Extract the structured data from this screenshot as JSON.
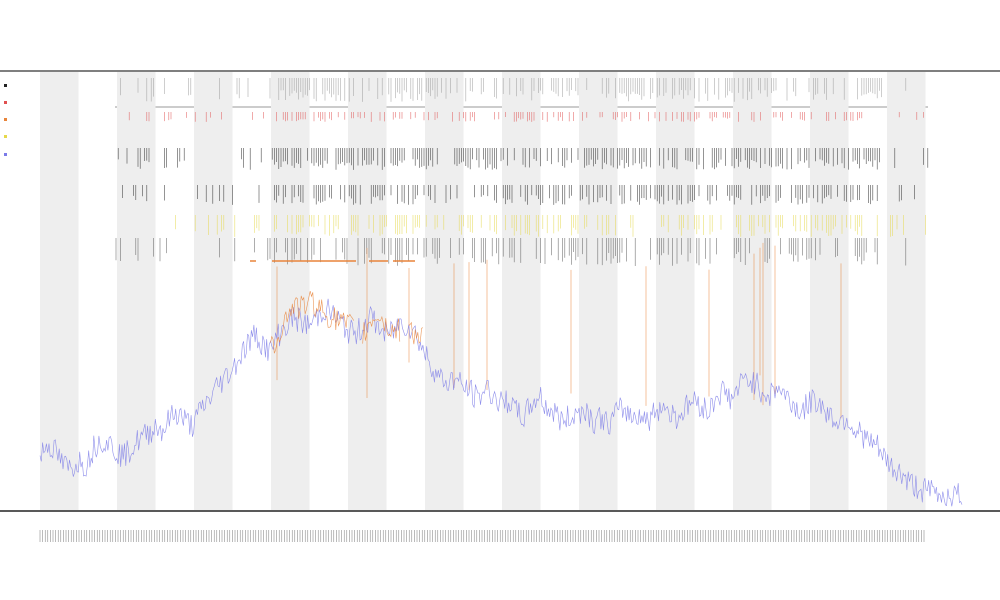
{
  "chart_data": {
    "type": "line",
    "title": "",
    "subtitle_1": "",
    "subtitle_2": "",
    "xlabel": "",
    "ylabel": "",
    "grid": false,
    "legend_position": "top-left",
    "x": [
      0,
      1,
      2,
      3,
      4,
      5,
      6,
      7,
      8,
      9,
      10,
      11,
      12,
      13,
      14,
      15,
      16,
      17,
      18,
      19,
      20,
      21,
      22,
      23,
      24,
      25,
      26,
      27,
      28,
      29,
      30,
      31,
      32,
      33,
      34,
      35,
      36,
      37,
      38,
      39,
      40,
      41,
      42,
      43,
      44,
      45,
      46,
      47,
      48,
      49,
      50,
      51,
      52,
      53,
      54,
      55,
      56,
      57,
      58,
      59,
      60,
      61,
      62,
      63,
      64,
      65,
      66,
      67,
      68,
      69,
      70,
      71,
      72,
      73,
      74,
      75,
      76,
      77,
      78,
      79,
      80,
      81,
      82,
      83,
      84,
      85,
      86,
      87,
      88,
      89,
      90,
      91,
      92,
      93,
      94,
      95,
      96,
      97,
      98,
      99,
      100,
      101,
      102,
      103,
      104,
      105,
      106,
      107,
      108,
      109,
      110,
      111,
      112,
      113,
      114,
      115,
      116,
      117,
      118,
      119,
      120
    ],
    "series": [
      {
        "name": "",
        "color": "#7b7be8",
        "values": [
          0.12,
          0.15,
          0.13,
          0.1,
          0.09,
          0.11,
          0.1,
          0.14,
          0.16,
          0.15,
          0.13,
          0.12,
          0.14,
          0.16,
          0.17,
          0.19,
          0.18,
          0.21,
          0.22,
          0.2,
          0.19,
          0.23,
          0.25,
          0.28,
          0.3,
          0.32,
          0.35,
          0.38,
          0.4,
          0.38,
          0.36,
          0.4,
          0.42,
          0.44,
          0.43,
          0.42,
          0.44,
          0.46,
          0.45,
          0.43,
          0.41,
          0.4,
          0.42,
          0.44,
          0.42,
          0.4,
          0.41,
          0.43,
          0.42,
          0.4,
          0.36,
          0.33,
          0.3,
          0.29,
          0.3,
          0.28,
          0.27,
          0.25,
          0.28,
          0.26,
          0.24,
          0.25,
          0.22,
          0.21,
          0.24,
          0.26,
          0.23,
          0.22,
          0.2,
          0.21,
          0.22,
          0.23,
          0.2,
          0.21,
          0.19,
          0.22,
          0.23,
          0.21,
          0.22,
          0.2,
          0.22,
          0.24,
          0.22,
          0.21,
          0.23,
          0.25,
          0.24,
          0.22,
          0.26,
          0.27,
          0.25,
          0.28,
          0.3,
          0.29,
          0.27,
          0.26,
          0.28,
          0.26,
          0.24,
          0.22,
          0.24,
          0.25,
          0.23,
          0.21,
          0.2,
          0.21,
          0.18,
          0.17,
          0.15,
          0.14,
          0.11,
          0.09,
          0.08,
          0.06,
          0.05,
          0.04,
          0.04,
          0.03,
          0.03,
          0.03,
          0.03
        ]
      },
      {
        "name": "",
        "color": "#e8843a",
        "values": [
          null,
          null,
          null,
          null,
          null,
          null,
          null,
          null,
          null,
          null,
          null,
          null,
          null,
          null,
          null,
          null,
          null,
          null,
          null,
          null,
          null,
          null,
          null,
          null,
          null,
          null,
          null,
          null,
          null,
          null,
          0.36,
          0.4,
          0.44,
          0.47,
          0.46,
          0.48,
          0.47,
          0.45,
          0.44,
          0.43,
          0.42,
          null,
          0.4,
          0.43,
          0.45,
          0.42,
          0.41,
          null,
          0.42,
          0.4,
          null,
          null,
          null,
          null,
          null,
          null,
          null,
          null,
          null,
          null,
          null,
          null,
          null,
          null,
          null,
          null,
          null,
          null,
          null,
          null,
          null,
          null,
          null,
          null,
          null,
          null,
          null,
          null,
          null,
          null,
          null,
          null,
          null,
          null,
          null,
          null,
          null,
          null,
          null,
          null,
          null,
          null,
          null,
          null,
          null,
          null,
          null,
          null,
          null,
          null,
          null,
          null,
          null,
          null,
          null,
          null,
          null,
          null,
          null,
          null,
          null,
          null,
          null,
          null,
          null,
          null,
          null,
          null,
          null,
          null,
          null
        ]
      }
    ],
    "ylim": [
      0,
      1
    ],
    "xlim": [
      0,
      120
    ]
  },
  "legend": {
    "entries": [
      "",
      "",
      "",
      "",
      ""
    ]
  },
  "xaxis": {
    "center_label": ""
  },
  "colors": {
    "band": "#eeeeee",
    "primary_line": "#7b7be8",
    "secondary_line": "#e8843a",
    "event_red": "#e05050",
    "event_yellow": "#e6d84a",
    "tick_black": "#222222"
  }
}
